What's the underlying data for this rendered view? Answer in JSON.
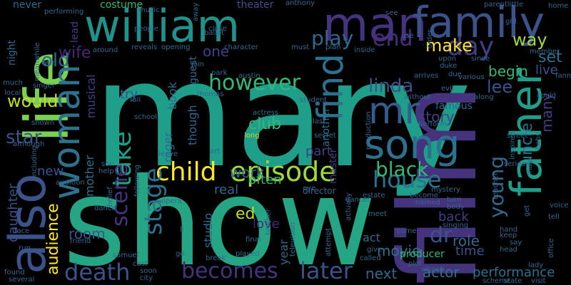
{
  "words": [
    {
      "text": "mary",
      "color": "#1f9e89"
    },
    {
      "text": "show",
      "color": "#25a584"
    },
    {
      "text": "film",
      "color": "#46337e"
    },
    {
      "text": "william",
      "color": "#20928c"
    },
    {
      "text": "man",
      "color": "#46337e"
    },
    {
      "text": "family",
      "color": "#3b528b"
    },
    {
      "text": "life",
      "color": "#7ad151"
    },
    {
      "text": "also",
      "color": "#3b528b"
    },
    {
      "text": "father",
      "color": "#1f9e89"
    },
    {
      "text": "mr",
      "color": "#365c8d"
    },
    {
      "text": "song",
      "color": "#2c728e"
    },
    {
      "text": "woman",
      "color": "#2c728e"
    },
    {
      "text": "find",
      "color": "#2c728e"
    },
    {
      "text": "episode",
      "color": "#a0da39"
    },
    {
      "text": "child",
      "color": "#fde725"
    },
    {
      "text": "take",
      "color": "#1f9e89"
    },
    {
      "text": "death",
      "color": "#3b528b"
    },
    {
      "text": "becomes",
      "color": "#46337e"
    },
    {
      "text": "later",
      "color": "#3b528b"
    },
    {
      "text": "stage",
      "color": "#2c728e"
    },
    {
      "text": "scene",
      "color": "#46337e"
    },
    {
      "text": "house",
      "color": "#2c728e"
    },
    {
      "text": "however",
      "color": "#35b779"
    },
    {
      "text": "linda",
      "color": "#3b528b"
    },
    {
      "text": "young",
      "color": "#31688e"
    },
    {
      "text": "black",
      "color": "#35b779"
    },
    {
      "text": "day",
      "color": "#433e85"
    },
    {
      "text": "end",
      "color": "#472d7b"
    },
    {
      "text": "play",
      "color": "#31688e"
    },
    {
      "text": "make",
      "color": "#fde725"
    },
    {
      "text": "lee",
      "color": "#3b528b"
    },
    {
      "text": "dr",
      "color": "#3b528b"
    },
    {
      "text": "star",
      "color": "#3b528b"
    },
    {
      "text": "would",
      "color": "#bddf26"
    },
    {
      "text": "audience",
      "color": "#fde725"
    },
    {
      "text": "way",
      "color": "#a0da39"
    },
    {
      "text": "uncle",
      "color": "#2c728e"
    },
    {
      "text": "wife",
      "color": "#482878"
    },
    {
      "text": "old",
      "color": "#31688e"
    },
    {
      "text": "story",
      "color": "#433e85"
    },
    {
      "text": "club",
      "color": "#35b779"
    },
    {
      "text": "movie",
      "color": "#2c728e"
    },
    {
      "text": "performance",
      "color": "#2c728e"
    },
    {
      "text": "ed",
      "color": "#bddf26"
    },
    {
      "text": "love",
      "color": "#482878"
    },
    {
      "text": "next",
      "color": "#31688e"
    },
    {
      "text": "actor",
      "color": "#2c728e"
    },
    {
      "text": "room",
      "color": "#3b528b"
    },
    {
      "text": "time",
      "color": "#3b528b"
    },
    {
      "text": "role",
      "color": "#31688e"
    },
    {
      "text": "work",
      "color": "#31688e"
    },
    {
      "text": "often",
      "color": "#35b779"
    },
    {
      "text": "real",
      "color": "#31688e"
    },
    {
      "text": "back",
      "color": "#433e85"
    },
    {
      "text": "part",
      "color": "#433e85"
    },
    {
      "text": "begin",
      "color": "#35b779"
    },
    {
      "text": "set",
      "color": "#2c728e"
    },
    {
      "text": "live",
      "color": "#3b528b"
    },
    {
      "text": "many",
      "color": "#433e85"
    },
    {
      "text": "one",
      "color": "#433e85"
    },
    {
      "text": "new",
      "color": "#3b528b"
    },
    {
      "text": "daughter",
      "color": "#3b528b"
    },
    {
      "text": "mother",
      "color": "#2c728e"
    },
    {
      "text": "musical",
      "color": "#433e85"
    },
    {
      "text": "roger",
      "color": "#31688e"
    },
    {
      "text": "book",
      "color": "#31688e"
    },
    {
      "text": "though",
      "color": "#31688e"
    },
    {
      "text": "studio",
      "color": "#31688e"
    },
    {
      "text": "year",
      "color": "#31688e"
    },
    {
      "text": "act",
      "color": "#31688e"
    },
    {
      "text": "try",
      "color": "#3b528b"
    },
    {
      "text": "night",
      "color": "#31688e"
    },
    {
      "text": "never",
      "color": "#31688e"
    },
    {
      "text": "costume",
      "color": "#35b779"
    },
    {
      "text": "lead",
      "color": "#433e85"
    },
    {
      "text": "theater",
      "color": "#3b528b"
    },
    {
      "text": "guest",
      "color": "#31688e"
    },
    {
      "text": "famous",
      "color": "#31688e"
    },
    {
      "text": "another",
      "color": "#2c728e"
    },
    {
      "text": "master",
      "color": "#433e85"
    },
    {
      "text": "producer",
      "color": "#35b779"
    },
    {
      "text": "director",
      "color": "#31688e"
    },
    {
      "text": "played",
      "color": "#2c728e"
    },
    {
      "text": "music",
      "color": "#31688e"
    },
    {
      "text": "opening",
      "color": "#2c728e"
    },
    {
      "text": "reveals",
      "color": "#31688e"
    },
    {
      "text": "character",
      "color": "#31688e"
    },
    {
      "text": "join",
      "color": "#31688e"
    },
    {
      "text": "park",
      "color": "#31688e"
    },
    {
      "text": "thomas",
      "color": "#31688e"
    },
    {
      "text": "austin",
      "color": "#2c728e"
    },
    {
      "text": "long",
      "color": "#bddf26"
    },
    {
      "text": "actress",
      "color": "#2c728e"
    },
    {
      "text": "student",
      "color": "#31688e"
    },
    {
      "text": "perform",
      "color": "#31688e"
    },
    {
      "text": "secret",
      "color": "#31688e"
    },
    {
      "text": "last",
      "color": "#31688e"
    },
    {
      "text": "art",
      "color": "#31688e"
    },
    {
      "text": "leave",
      "color": "#31688e"
    },
    {
      "text": "singer",
      "color": "#31688e"
    },
    {
      "text": "although",
      "color": "#31688e"
    },
    {
      "text": "audition",
      "color": "#31688e"
    },
    {
      "text": "dance",
      "color": "#31688e"
    },
    {
      "text": "help",
      "color": "#31688e"
    },
    {
      "text": "son",
      "color": "#31688e"
    },
    {
      "text": "belief",
      "color": "#31688e"
    },
    {
      "text": "opera",
      "color": "#31688e"
    },
    {
      "text": "dancer",
      "color": "#31688e"
    },
    {
      "text": "mystery",
      "color": "#31688e"
    },
    {
      "text": "estate",
      "color": "#31688e"
    },
    {
      "text": "become",
      "color": "#31688e"
    },
    {
      "text": "named",
      "color": "#31688e"
    },
    {
      "text": "meet",
      "color": "#31688e"
    },
    {
      "text": "singing",
      "color": "#31688e"
    },
    {
      "text": "body",
      "color": "#31688e"
    },
    {
      "text": "hand",
      "color": "#31688e"
    },
    {
      "text": "say",
      "color": "#31688e"
    },
    {
      "text": "head",
      "color": "#31688e"
    },
    {
      "text": "keep",
      "color": "#31688e"
    },
    {
      "text": "come",
      "color": "#31688e"
    },
    {
      "text": "give",
      "color": "#31688e"
    },
    {
      "text": "called",
      "color": "#31688e"
    },
    {
      "text": "plot",
      "color": "#31688e"
    },
    {
      "text": "whose",
      "color": "#31688e"
    },
    {
      "text": "scheme",
      "color": "#31688e"
    },
    {
      "text": "state",
      "color": "#31688e"
    },
    {
      "text": "visit",
      "color": "#31688e"
    },
    {
      "text": "several",
      "color": "#31688e"
    },
    {
      "text": "found",
      "color": "#31688e"
    },
    {
      "text": "face",
      "color": "#31688e"
    },
    {
      "text": "friend",
      "color": "#31688e"
    },
    {
      "text": "run",
      "color": "#31688e"
    },
    {
      "text": "samuel",
      "color": "#31688e"
    },
    {
      "text": "cast",
      "color": "#31688e"
    },
    {
      "text": "soon",
      "color": "#31688e"
    },
    {
      "text": "city",
      "color": "#31688e"
    },
    {
      "text": "go",
      "color": "#31688e"
    },
    {
      "text": "break",
      "color": "#31688e"
    },
    {
      "text": "final",
      "color": "#31688e"
    },
    {
      "text": "eye",
      "color": "#31688e"
    },
    {
      "text": "brother",
      "color": "#31688e"
    },
    {
      "text": "television",
      "color": "#31688e"
    },
    {
      "text": "attempt",
      "color": "#31688e"
    },
    {
      "text": "actually",
      "color": "#31688e"
    },
    {
      "text": "turn",
      "color": "#31688e"
    },
    {
      "text": "teacher",
      "color": "#31688e"
    },
    {
      "text": "get",
      "color": "#31688e"
    },
    {
      "text": "lady",
      "color": "#31688e"
    },
    {
      "text": "voice",
      "color": "#31688e"
    },
    {
      "text": "office",
      "color": "#31688e"
    },
    {
      "text": "tell",
      "color": "#31688e"
    },
    {
      "text": "may",
      "color": "#31688e"
    },
    {
      "text": "series",
      "color": "#31688e"
    },
    {
      "text": "street",
      "color": "#31688e"
    },
    {
      "text": "inspired",
      "color": "#31688e"
    },
    {
      "text": "baby",
      "color": "#31688e"
    },
    {
      "text": "could",
      "color": "#31688e"
    },
    {
      "text": "fanny",
      "color": "#31688e"
    },
    {
      "text": "member",
      "color": "#31688e"
    },
    {
      "text": "home",
      "color": "#31688e"
    },
    {
      "text": "girl",
      "color": "#31688e"
    },
    {
      "text": "parentlittle",
      "color": "#31688e"
    },
    {
      "text": "since",
      "color": "#31688e"
    },
    {
      "text": "duke",
      "color": "#31688e"
    },
    {
      "text": "upon",
      "color": "#31688e"
    },
    {
      "text": "various",
      "color": "#31688e"
    },
    {
      "text": "along",
      "color": "#31688e"
    },
    {
      "text": "evil",
      "color": "#31688e"
    },
    {
      "text": "arrives",
      "color": "#31688e"
    },
    {
      "text": "due",
      "color": "#31688e"
    },
    {
      "text": "without",
      "color": "#31688e"
    },
    {
      "text": "production",
      "color": "#31688e"
    },
    {
      "text": "inside",
      "color": "#31688e"
    },
    {
      "text": "plan",
      "color": "#31688e"
    },
    {
      "text": "must",
      "color": "#31688e"
    },
    {
      "text": "anthony",
      "color": "#31688e"
    },
    {
      "text": "see",
      "color": "#31688e"
    },
    {
      "text": "use",
      "color": "#31688e"
    },
    {
      "text": "order",
      "color": "#31688e"
    },
    {
      "text": "away",
      "color": "#31688e"
    },
    {
      "text": "close",
      "color": "#31688e"
    },
    {
      "text": "ballet",
      "color": "#31688e"
    },
    {
      "text": "people",
      "color": "#31688e"
    },
    {
      "text": "school",
      "color": "#31688e"
    },
    {
      "text": "fall",
      "color": "#31688e"
    },
    {
      "text": "around",
      "color": "#31688e"
    },
    {
      "text": "performing",
      "color": "#31688e"
    },
    {
      "text": "meanwhile",
      "color": "#31688e"
    },
    {
      "text": "twin",
      "color": "#31688e"
    },
    {
      "text": "much",
      "color": "#31688e"
    },
    {
      "text": "local",
      "color": "#31688e"
    },
    {
      "text": "shown",
      "color": "#31688e"
    },
    {
      "text": "including",
      "color": "#31688e"
    },
    {
      "text": "following",
      "color": "#31688e"
    },
    {
      "text": "li",
      "color": "#31688e"
    }
  ]
}
